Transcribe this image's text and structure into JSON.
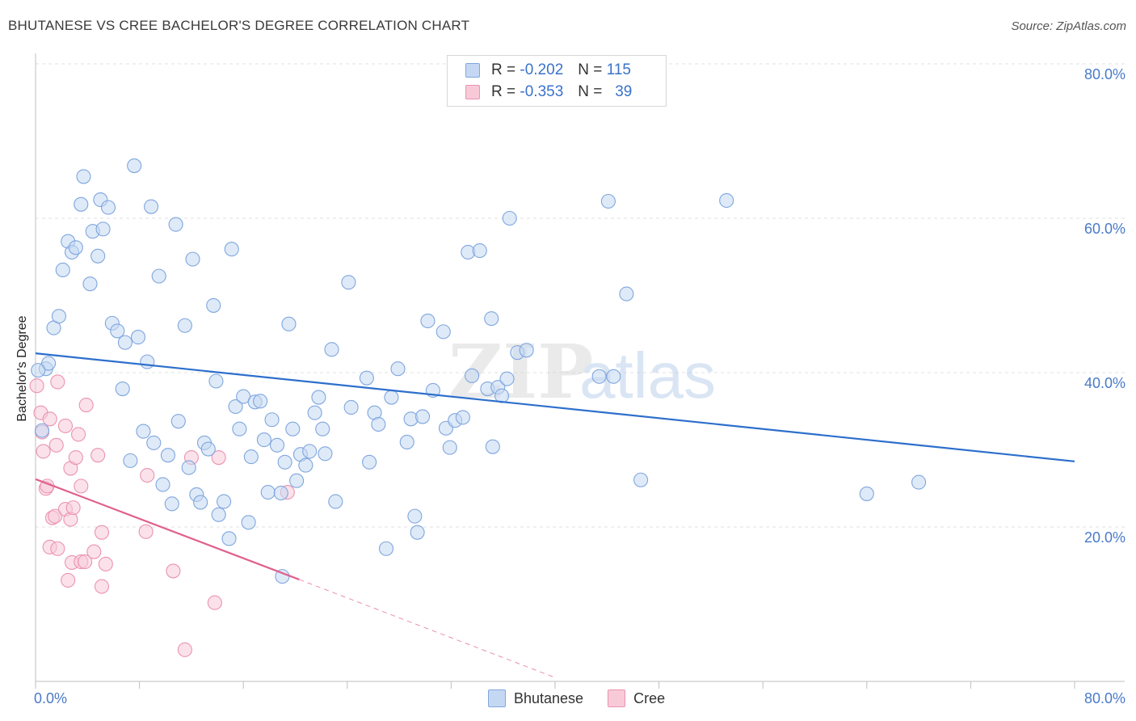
{
  "header": {
    "title": "BHUTANESE VS CREE BACHELOR'S DEGREE CORRELATION CHART",
    "source": "Source: ZipAtlas.com"
  },
  "watermark": {
    "part1": "ZIP",
    "part2": "atlas"
  },
  "legend": {
    "rows": [
      {
        "r_label": "R =",
        "r_value": "-0.202",
        "n_label": "N =",
        "n_value": "115"
      },
      {
        "r_label": "R =",
        "r_value": "-0.353",
        "n_label": "N =",
        "n_value": "39"
      }
    ]
  },
  "bottom_legend": [
    "Bhutanese",
    "Cree"
  ],
  "colors": {
    "bhutanese_fill": "#c5d8f3",
    "bhutanese_stroke": "#7fa6de",
    "bhutanese_line": "#2d6fcc",
    "cree_fill": "#f8cad8",
    "cree_stroke": "#eb93b0",
    "cree_line": "#e0608c",
    "grid": "#e2e2e2",
    "axis_label": "#4a7ac8"
  },
  "chart_data": {
    "type": "scatter",
    "title": "BHUTANESE VS CREE BACHELOR'S DEGREE CORRELATION CHART",
    "xlabel": "",
    "ylabel": "Bachelor's Degree",
    "xlim": [
      0,
      80
    ],
    "ylim": [
      0,
      80
    ],
    "x_tick_labels": [
      "0.0%",
      "80.0%"
    ],
    "y_tick_labels": [
      "20.0%",
      "40.0%",
      "60.0%",
      "80.0%"
    ],
    "y_ticks": [
      20,
      40,
      60,
      80
    ],
    "grid": true,
    "legend_position": "top-center",
    "series": [
      {
        "name": "Bhutanese",
        "R": -0.202,
        "N": 115,
        "trend": {
          "x": [
            0,
            80
          ],
          "y": [
            42.5,
            28.5
          ],
          "style": "solid"
        },
        "points": [
          [
            0.5,
            32.5
          ],
          [
            0.8,
            40.5
          ],
          [
            1.0,
            41.2
          ],
          [
            1.4,
            45.8
          ],
          [
            1.8,
            47.3
          ],
          [
            2.1,
            53.3
          ],
          [
            2.5,
            57.0
          ],
          [
            2.8,
            55.6
          ],
          [
            3.1,
            56.2
          ],
          [
            3.5,
            61.8
          ],
          [
            3.7,
            65.4
          ],
          [
            4.2,
            51.5
          ],
          [
            4.4,
            58.3
          ],
          [
            4.8,
            55.1
          ],
          [
            5.0,
            62.4
          ],
          [
            5.2,
            58.6
          ],
          [
            5.6,
            61.4
          ],
          [
            5.9,
            46.4
          ],
          [
            6.3,
            45.4
          ],
          [
            6.7,
            37.9
          ],
          [
            6.9,
            43.9
          ],
          [
            7.3,
            28.6
          ],
          [
            7.6,
            66.8
          ],
          [
            7.9,
            44.6
          ],
          [
            8.3,
            32.4
          ],
          [
            8.6,
            41.4
          ],
          [
            8.9,
            61.5
          ],
          [
            9.1,
            30.9
          ],
          [
            9.5,
            52.5
          ],
          [
            9.8,
            25.5
          ],
          [
            10.2,
            29.3
          ],
          [
            10.5,
            23.0
          ],
          [
            10.8,
            59.2
          ],
          [
            11.0,
            33.7
          ],
          [
            11.5,
            46.1
          ],
          [
            11.8,
            27.7
          ],
          [
            12.1,
            54.7
          ],
          [
            12.4,
            24.2
          ],
          [
            12.7,
            23.2
          ],
          [
            13.0,
            30.9
          ],
          [
            13.3,
            30.1
          ],
          [
            13.7,
            48.7
          ],
          [
            13.9,
            38.9
          ],
          [
            14.1,
            21.6
          ],
          [
            14.5,
            23.3
          ],
          [
            14.9,
            18.5
          ],
          [
            15.1,
            56.0
          ],
          [
            15.4,
            35.6
          ],
          [
            15.7,
            32.7
          ],
          [
            16.0,
            36.9
          ],
          [
            16.4,
            20.6
          ],
          [
            16.6,
            29.1
          ],
          [
            16.9,
            36.2
          ],
          [
            17.3,
            36.3
          ],
          [
            17.6,
            31.3
          ],
          [
            17.9,
            24.5
          ],
          [
            18.2,
            33.9
          ],
          [
            18.6,
            30.6
          ],
          [
            18.9,
            24.4
          ],
          [
            19.2,
            28.4
          ],
          [
            19.5,
            46.3
          ],
          [
            19.8,
            32.7
          ],
          [
            20.1,
            26.0
          ],
          [
            20.4,
            29.4
          ],
          [
            20.8,
            28.0
          ],
          [
            21.1,
            29.8
          ],
          [
            21.5,
            34.8
          ],
          [
            21.8,
            36.8
          ],
          [
            22.1,
            32.7
          ],
          [
            22.3,
            29.5
          ],
          [
            22.8,
            43.0
          ],
          [
            23.1,
            23.3
          ],
          [
            24.1,
            51.7
          ],
          [
            24.3,
            35.5
          ],
          [
            25.5,
            39.3
          ],
          [
            25.7,
            28.4
          ],
          [
            26.1,
            34.8
          ],
          [
            26.4,
            33.3
          ],
          [
            27.0,
            17.2
          ],
          [
            27.4,
            36.8
          ],
          [
            27.9,
            40.5
          ],
          [
            28.6,
            31.0
          ],
          [
            28.9,
            34.0
          ],
          [
            29.2,
            21.4
          ],
          [
            29.4,
            19.3
          ],
          [
            29.8,
            34.3
          ],
          [
            30.2,
            46.7
          ],
          [
            30.6,
            37.7
          ],
          [
            31.4,
            45.3
          ],
          [
            31.6,
            32.8
          ],
          [
            31.9,
            30.3
          ],
          [
            32.3,
            33.8
          ],
          [
            32.9,
            34.2
          ],
          [
            33.3,
            55.6
          ],
          [
            33.6,
            39.6
          ],
          [
            34.2,
            55.8
          ],
          [
            34.8,
            37.9
          ],
          [
            35.1,
            47.0
          ],
          [
            35.2,
            30.4
          ],
          [
            35.6,
            38.1
          ],
          [
            35.9,
            37.0
          ],
          [
            36.3,
            39.2
          ],
          [
            36.5,
            60.0
          ],
          [
            37.1,
            42.6
          ],
          [
            37.8,
            42.9
          ],
          [
            43.4,
            39.5
          ],
          [
            44.1,
            62.2
          ],
          [
            44.5,
            39.5
          ],
          [
            45.5,
            50.2
          ],
          [
            46.6,
            26.1
          ],
          [
            53.2,
            62.3
          ],
          [
            64.0,
            24.3
          ],
          [
            68.0,
            25.8
          ],
          [
            19.0,
            13.6
          ],
          [
            0.2,
            40.3
          ]
        ]
      },
      {
        "name": "Cree",
        "R": -0.353,
        "N": 39,
        "trend": {
          "x": [
            0,
            20.3
          ],
          "y": [
            26.2,
            13.2
          ],
          "dashed_to": [
            40,
            0.5
          ],
          "style": "solid-then-dashed"
        },
        "points": [
          [
            0.1,
            38.3
          ],
          [
            0.4,
            34.8
          ],
          [
            0.5,
            32.3
          ],
          [
            0.6,
            29.8
          ],
          [
            0.8,
            25.0
          ],
          [
            0.9,
            25.3
          ],
          [
            1.1,
            34.0
          ],
          [
            1.1,
            17.4
          ],
          [
            1.3,
            21.2
          ],
          [
            1.5,
            21.4
          ],
          [
            1.6,
            30.6
          ],
          [
            1.7,
            38.8
          ],
          [
            1.7,
            17.2
          ],
          [
            2.3,
            22.3
          ],
          [
            2.3,
            33.1
          ],
          [
            2.5,
            13.1
          ],
          [
            2.7,
            21.0
          ],
          [
            2.7,
            27.6
          ],
          [
            2.8,
            15.4
          ],
          [
            2.9,
            22.5
          ],
          [
            3.1,
            29.0
          ],
          [
            3.3,
            32.0
          ],
          [
            3.5,
            15.5
          ],
          [
            3.5,
            25.3
          ],
          [
            3.8,
            15.5
          ],
          [
            3.9,
            35.8
          ],
          [
            4.5,
            16.8
          ],
          [
            4.8,
            29.3
          ],
          [
            5.1,
            12.3
          ],
          [
            5.1,
            19.3
          ],
          [
            5.4,
            15.2
          ],
          [
            8.5,
            19.4
          ],
          [
            8.6,
            26.7
          ],
          [
            10.6,
            14.3
          ],
          [
            11.5,
            4.1
          ],
          [
            12.0,
            29.0
          ],
          [
            13.8,
            10.2
          ],
          [
            14.1,
            29.0
          ],
          [
            19.4,
            24.5
          ]
        ]
      }
    ]
  }
}
